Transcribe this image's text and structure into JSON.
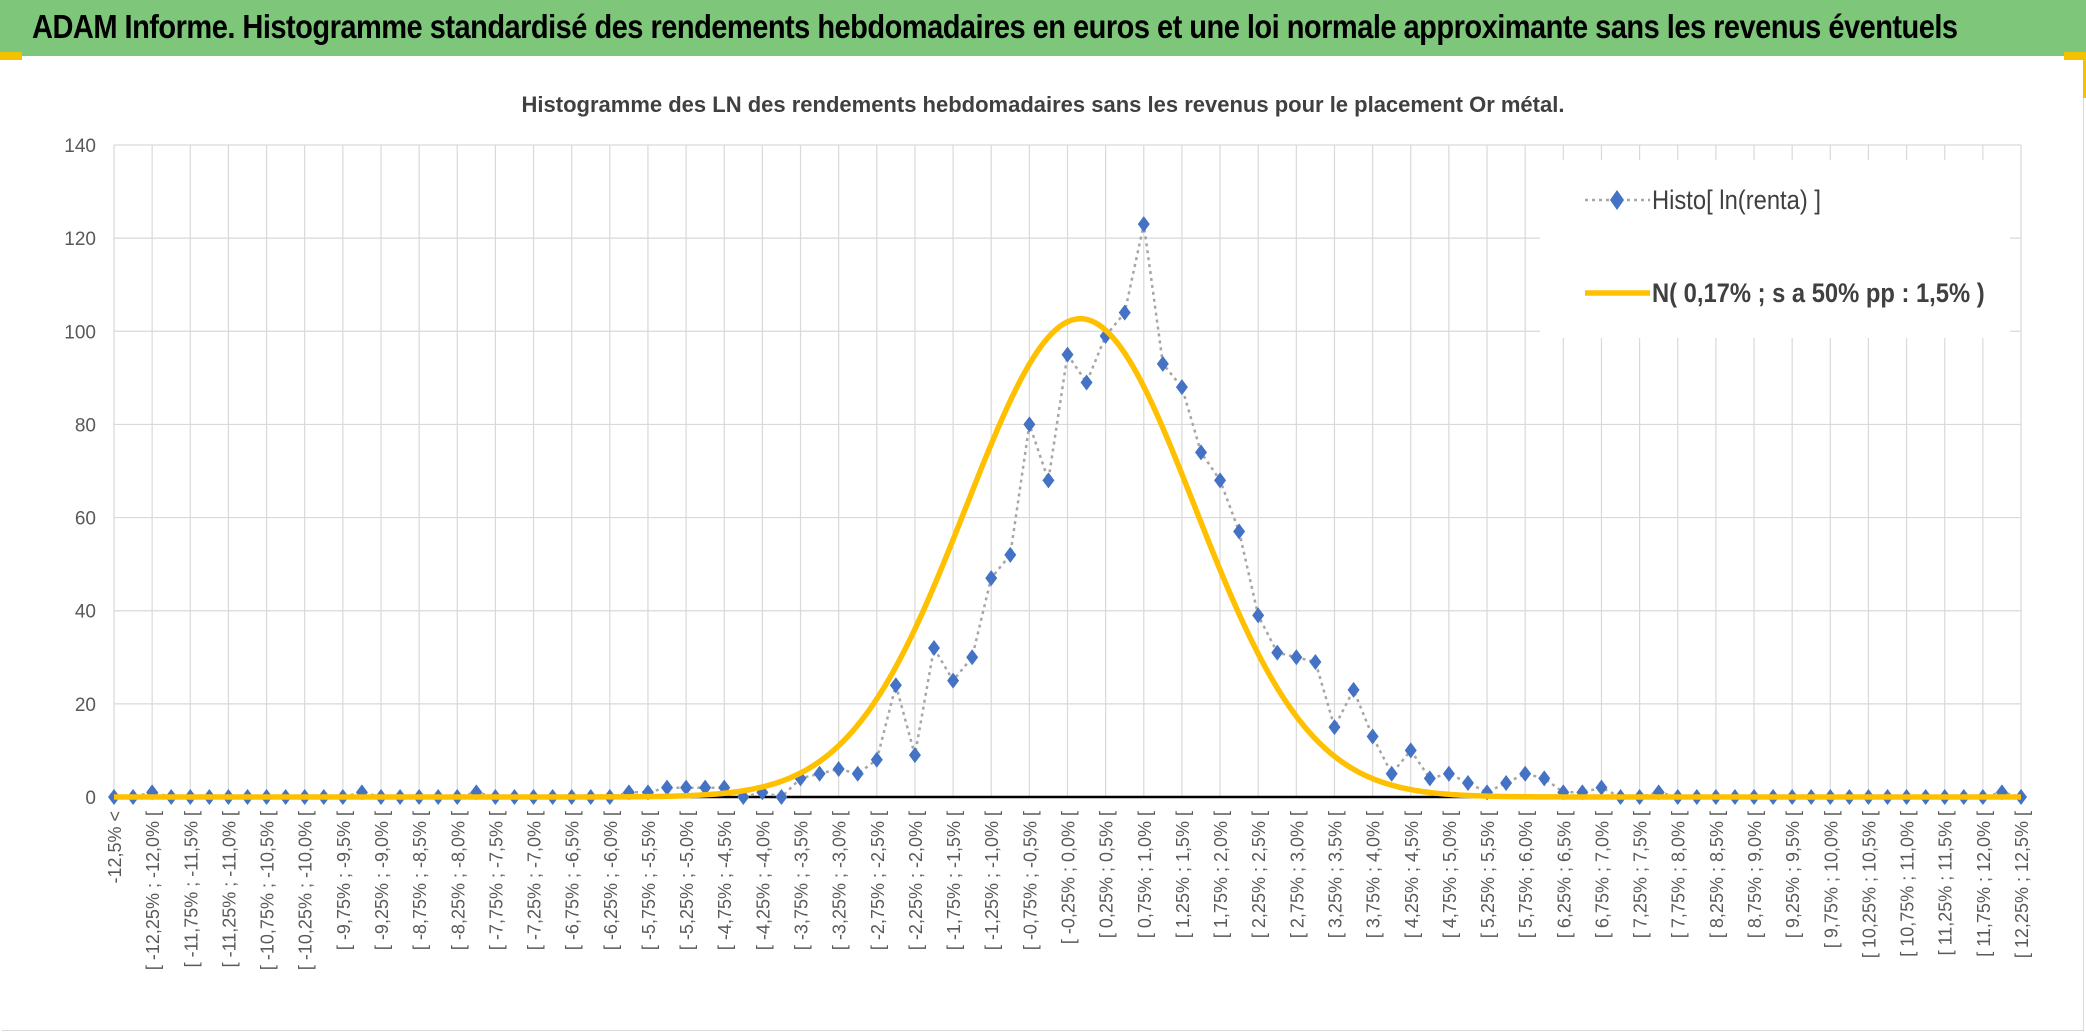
{
  "banner": {
    "title": "ADAM Informe. Histogramme standardisé des rendements hebdomadaires en euros et une loi normale approximante sans les revenus éventuels"
  },
  "colors": {
    "banner_bg": "#7dc67a",
    "accent": "#f2c200",
    "series_marker": "#4472c4",
    "series_line": "#a6a6a6",
    "normal_curve": "#ffc000",
    "grid": "#d9d9d9",
    "axis_text": "#595959"
  },
  "chart_data": {
    "type": "line",
    "title": "Histogramme des LN des rendements hebdomadaires sans les revenus pour le placement Or métal.",
    "xlabel": "",
    "ylabel": "",
    "ylim": [
      0,
      140
    ],
    "yticks": [
      0,
      20,
      40,
      60,
      80,
      100,
      120,
      140
    ],
    "grid": true,
    "legend_position": "top-right",
    "categories": [
      "-12,5% <",
      "[ -12,25% ; -12,0% [",
      "[ -11,75% ; -11,5% [",
      "[ -11,25% ; -11,0% [",
      "[ -10,75% ; -10,5% [",
      "[ -10,25% ; -10,0% [",
      "[ -9,75% ; -9,5% [",
      "[ -9,25% ; -9,0% [",
      "[ -8,75% ; -8,5% [",
      "[ -8,25% ; -8,0% [",
      "[ -7,75% ; -7,5% [",
      "[ -7,25% ; -7,0% [",
      "[ -6,75% ; -6,5% [",
      "[ -6,25% ; -6,0% [",
      "[ -5,75% ; -5,5% [",
      "[ -5,25% ; -5,0% [",
      "[ -4,75% ; -4,5% [",
      "[ -4,25% ; -4,0% [",
      "[ -3,75% ; -3,5% [",
      "[ -3,25% ; -3,0% [",
      "[ -2,75% ; -2,5% [",
      "[ -2,25% ; -2,0% [",
      "[ -1,75% ; -1,5% [",
      "[ -1,25% ; -1,0% [",
      "[ -0,75% ; -0,5% [",
      "[ -0,25% ; 0,0% [",
      "[ 0,25% ; 0,5% [",
      "[ 0,75% ; 1,0% [",
      "[ 1,25% ; 1,5% [",
      "[ 1,75% ; 2,0% [",
      "[ 2,25% ; 2,5% [",
      "[ 2,75% ; 3,0% [",
      "[ 3,25% ; 3,5% [",
      "[ 3,75% ; 4,0% [",
      "[ 4,25% ; 4,5% [",
      "[ 4,75% ; 5,0% [",
      "[ 5,25% ; 5,5% [",
      "[ 5,75% ; 6,0% [",
      "[ 6,25% ; 6,5% [",
      "[ 6,75% ; 7,0% [",
      "[ 7,25% ; 7,5% [",
      "[ 7,75% ; 8,0% [",
      "[ 8,25% ; 8,5% [",
      "[ 8,75% ; 9,0% [",
      "[ 9,25% ; 9,5% [",
      "[ 9,75% ; 10,0% [",
      "[ 10,25% ; 10,5% [",
      "[ 10,75% ; 11,0% [",
      "[ 11,25% ; 11,5% [",
      "[ 11,75% ; 12,0% [",
      "[ 12,25% ; 12,5% ["
    ],
    "x": [
      -12.5,
      -12.25,
      -12.0,
      -11.75,
      -11.5,
      -11.25,
      -11.0,
      -10.75,
      -10.5,
      -10.25,
      -10.0,
      -9.75,
      -9.5,
      -9.25,
      -9.0,
      -8.75,
      -8.5,
      -8.25,
      -8.0,
      -7.75,
      -7.5,
      -7.25,
      -7.0,
      -6.75,
      -6.5,
      -6.25,
      -6.0,
      -5.75,
      -5.5,
      -5.25,
      -5.0,
      -4.75,
      -4.5,
      -4.25,
      -4.0,
      -3.75,
      -3.5,
      -3.25,
      -3.0,
      -2.75,
      -2.5,
      -2.25,
      -2.0,
      -1.75,
      -1.5,
      -1.25,
      -1.0,
      -0.75,
      -0.5,
      -0.25,
      0.0,
      0.25,
      0.5,
      0.75,
      1.0,
      1.25,
      1.5,
      1.75,
      2.0,
      2.25,
      2.5,
      2.75,
      3.0,
      3.25,
      3.5,
      3.75,
      4.0,
      4.25,
      4.5,
      4.75,
      5.0,
      5.25,
      5.5,
      5.75,
      6.0,
      6.25,
      6.5,
      6.75,
      7.0,
      7.25,
      7.5,
      7.75,
      8.0,
      8.25,
      8.5,
      8.75,
      9.0,
      9.25,
      9.5,
      9.75,
      10.0,
      10.25,
      10.5,
      10.75,
      11.0,
      11.25,
      11.5,
      11.75,
      12.0,
      12.25,
      12.5
    ],
    "series": [
      {
        "name": "Histo[ ln(renta) ]",
        "style": "markers",
        "values": [
          0,
          0,
          1,
          0,
          0,
          0,
          0,
          0,
          0,
          0,
          0,
          0,
          0,
          1,
          0,
          0,
          0,
          0,
          0,
          1,
          0,
          0,
          0,
          0,
          0,
          0,
          0,
          1,
          1,
          2,
          2,
          2,
          2,
          0,
          1,
          0,
          4,
          5,
          6,
          5,
          8,
          24,
          9,
          32,
          25,
          30,
          47,
          52,
          80,
          68,
          95,
          89,
          99,
          104,
          123,
          93,
          88,
          74,
          68,
          57,
          39,
          31,
          30,
          29,
          15,
          23,
          13,
          5,
          10,
          4,
          5,
          3,
          1,
          3,
          5,
          4,
          1,
          1,
          2,
          0,
          0,
          1,
          0,
          0,
          0,
          0,
          0,
          0,
          0,
          0,
          0,
          0,
          0,
          0,
          0,
          0,
          0,
          0,
          0,
          1,
          0
        ]
      },
      {
        "name": "N( 0,17% ; s a 50% pp : 1,5% )",
        "style": "line",
        "mean": 0.17,
        "sd": 1.5,
        "peak": 102.7
      }
    ]
  }
}
